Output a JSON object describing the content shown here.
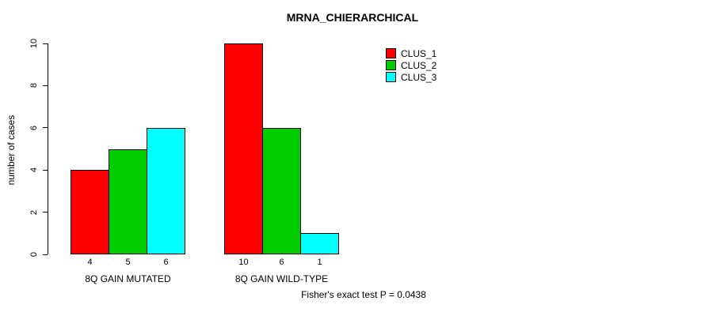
{
  "chart_data": {
    "type": "bar",
    "title": "MRNA_CHIERARCHICAL",
    "xlabel": "",
    "ylabel": "number of cases",
    "ylim": [
      0,
      10
    ],
    "yticks": [
      0,
      2,
      4,
      6,
      8,
      10
    ],
    "grid": false,
    "categories": [
      "8Q GAIN MUTATED",
      "8Q GAIN WILD-TYPE"
    ],
    "series": [
      {
        "name": "CLUS_1",
        "color": "#ff0000",
        "values": [
          4,
          10
        ]
      },
      {
        "name": "CLUS_2",
        "color": "#00cd00",
        "values": [
          5,
          6
        ]
      },
      {
        "name": "CLUS_3",
        "color": "#00ffff",
        "values": [
          6,
          1
        ]
      }
    ],
    "bar_value_labels_shown": true,
    "legend_position": "top-right",
    "legend_entries": [
      "CLUS_1",
      "CLUS_2",
      "CLUS_3"
    ],
    "annotation": "Fisher's exact test P = 0.0438"
  }
}
